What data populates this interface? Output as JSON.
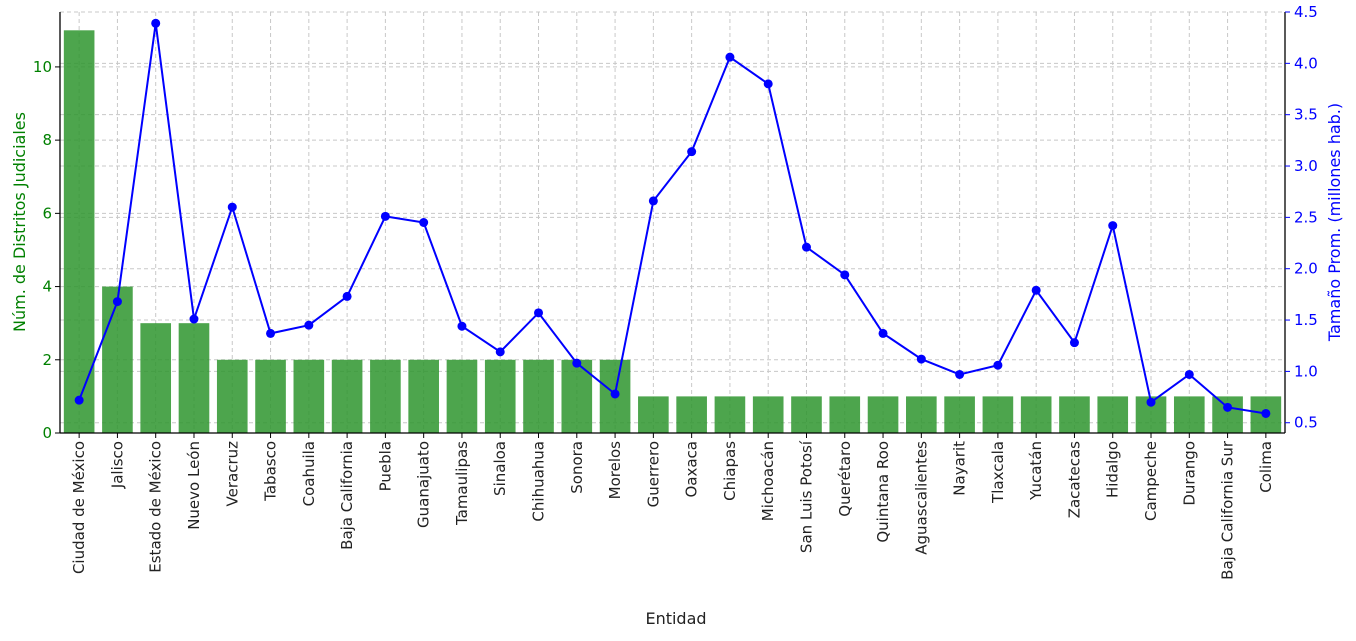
{
  "chart_data": {
    "type": "bar",
    "title": "",
    "xlabel": "Entidad",
    "ylabel_left": "Núm. de Distritos Judiciales",
    "ylabel_right": "Tamaño Prom. (millones hab.)",
    "categories": [
      "Ciudad de México",
      "Jalisco",
      "Estado de México",
      "Nuevo León",
      "Veracruz",
      "Tabasco",
      "Coahuila",
      "Baja California",
      "Puebla",
      "Guanajuato",
      "Tamaulipas",
      "Sinaloa",
      "Chihuahua",
      "Sonora",
      "Morelos",
      "Guerrero",
      "Oaxaca",
      "Chiapas",
      "Michoacán",
      "San Luis Potosí",
      "Querétaro",
      "Quintana Roo",
      "Aguascalientes",
      "Nayarit",
      "Tlaxcala",
      "Yucatán",
      "Zacatecas",
      "Hidalgo",
      "Campeche",
      "Durango",
      "Baja California Sur",
      "Colima"
    ],
    "series": [
      {
        "axis": "left",
        "kind": "bar",
        "color": "#2e952e",
        "values": [
          11,
          4,
          3,
          3,
          2,
          2,
          2,
          2,
          2,
          2,
          2,
          2,
          2,
          2,
          2,
          1,
          1,
          1,
          1,
          1,
          1,
          1,
          1,
          1,
          1,
          1,
          1,
          1,
          1,
          1,
          1,
          1
        ]
      },
      {
        "axis": "right",
        "kind": "line",
        "color": "#0000ff",
        "values": [
          0.72,
          1.68,
          4.39,
          1.51,
          2.6,
          1.37,
          1.45,
          1.73,
          2.51,
          2.45,
          1.44,
          1.19,
          1.57,
          1.08,
          0.78,
          2.66,
          3.14,
          4.06,
          3.8,
          2.21,
          1.94,
          1.37,
          1.12,
          0.97,
          1.06,
          1.79,
          1.28,
          2.42,
          0.7,
          0.97,
          0.65,
          0.59
        ]
      }
    ],
    "ylim_left": [
      0,
      11.5
    ],
    "ylim_right": [
      0.4,
      4.5
    ],
    "yticks_left": [
      "0",
      "2",
      "4",
      "6",
      "8",
      "10"
    ],
    "yticks_right": [
      "0.5",
      "1.0",
      "1.5",
      "2.0",
      "2.5",
      "3.0",
      "3.5",
      "4.0",
      "4.5"
    ],
    "grid": true,
    "legend": "none"
  }
}
